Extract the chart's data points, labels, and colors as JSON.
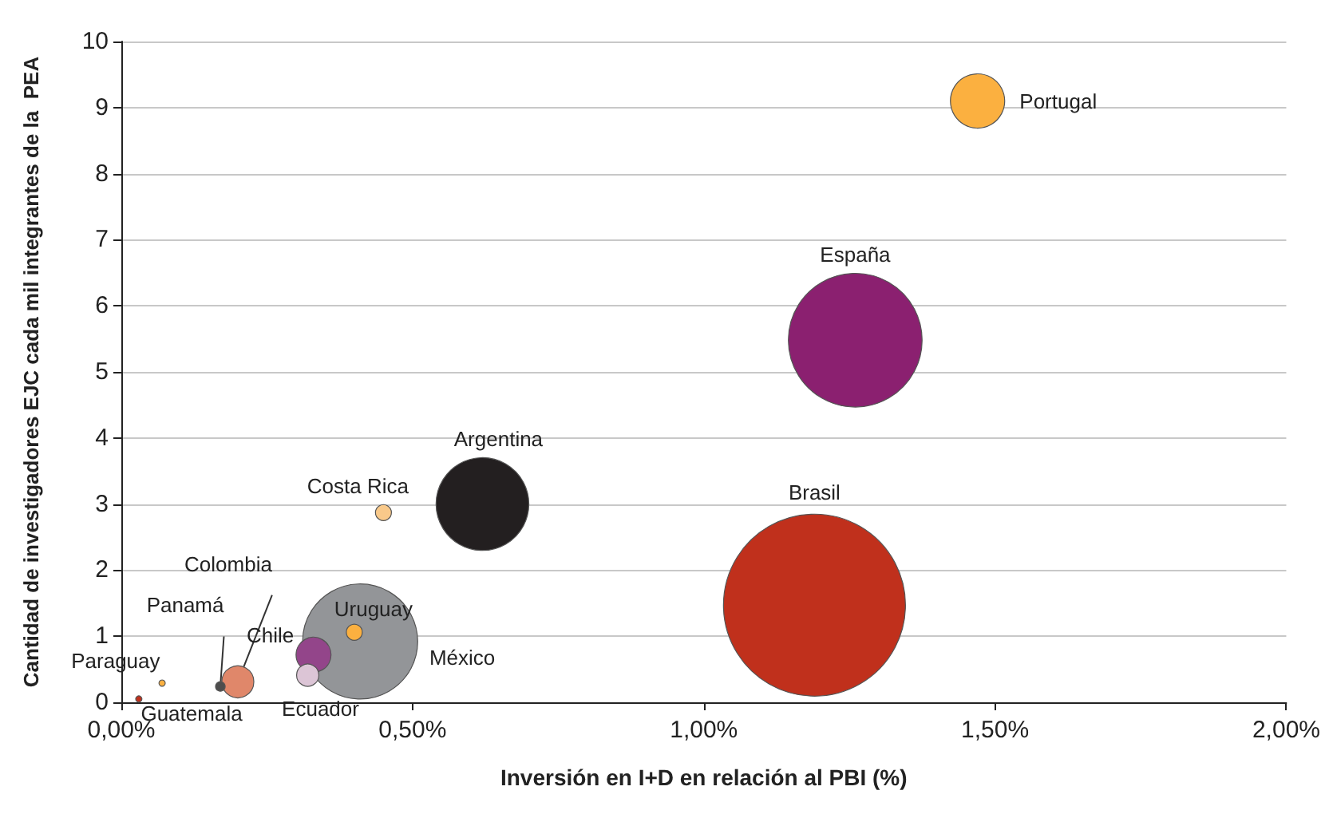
{
  "chart_data": {
    "type": "bubble",
    "xlabel": "Inversión en I+D en relación al PBI (%)",
    "ylabel": "Cantidad de investigadores EJC cada mil integrantes de la  PEA",
    "xlim": [
      0,
      2
    ],
    "xticks": [
      {
        "value": 0,
        "label": "0,00%"
      },
      {
        "value": 0.5,
        "label": "0,50%"
      },
      {
        "value": 1,
        "label": "1,00%"
      },
      {
        "value": 1.5,
        "label": "1,50%"
      },
      {
        "value": 2,
        "label": "2,00%"
      }
    ],
    "ylim": [
      0,
      10
    ],
    "yticks": [
      0,
      1,
      2,
      3,
      4,
      5,
      6,
      7,
      8,
      9,
      10
    ],
    "grid": "y",
    "legend": false,
    "series": [
      {
        "name": "Portugal",
        "color": "#fbb040",
        "x": [
          1.47
        ],
        "values": [
          9.1
        ],
        "sizes": [
          0.089
        ]
      },
      {
        "name": "España",
        "color": "#8b2070",
        "x": [
          1.26
        ],
        "values": [
          5.48
        ],
        "sizes": [
          0.54
        ]
      },
      {
        "name": "Brasil",
        "color": "#c0301c",
        "x": [
          1.19
        ],
        "values": [
          1.47
        ],
        "sizes": [
          1
        ]
      },
      {
        "name": "Argentina",
        "color": "#231f20",
        "x": [
          0.62
        ],
        "values": [
          3.0
        ],
        "sizes": [
          0.26
        ]
      },
      {
        "name": "Costa Rica",
        "color": "#f9c98a",
        "x": [
          0.45
        ],
        "values": [
          2.87
        ],
        "sizes": [
          0.0077
        ]
      },
      {
        "name": "México",
        "color": "#939598",
        "x": [
          0.41
        ],
        "values": [
          0.92
        ],
        "sizes": [
          0.4
        ]
      },
      {
        "name": "Uruguay",
        "color": "#fbb040",
        "x": [
          0.4
        ],
        "values": [
          1.06
        ],
        "sizes": [
          0.0077
        ]
      },
      {
        "name": "Chile",
        "color": "#93458a",
        "x": [
          0.33
        ],
        "values": [
          0.72
        ],
        "sizes": [
          0.037
        ]
      },
      {
        "name": "Ecuador",
        "color": "#dcc5d6",
        "x": [
          0.32
        ],
        "values": [
          0.41
        ],
        "sizes": [
          0.015
        ]
      },
      {
        "name": "Colombia",
        "color": "#e0876a",
        "x": [
          0.2
        ],
        "values": [
          0.31
        ],
        "sizes": [
          0.031
        ]
      },
      {
        "name": "Panamá",
        "color": "#4d4d4d",
        "x": [
          0.17
        ],
        "values": [
          0.24
        ],
        "sizes": [
          0.0028
        ]
      },
      {
        "name": "Paraguay",
        "color": "#fbb040",
        "x": [
          0.07
        ],
        "values": [
          0.29
        ],
        "sizes": [
          0.0012
        ]
      },
      {
        "name": "Guatemala",
        "color": "#c0301c",
        "x": [
          0.03
        ],
        "values": [
          0.05
        ],
        "sizes": [
          0.0012
        ]
      }
    ]
  }
}
